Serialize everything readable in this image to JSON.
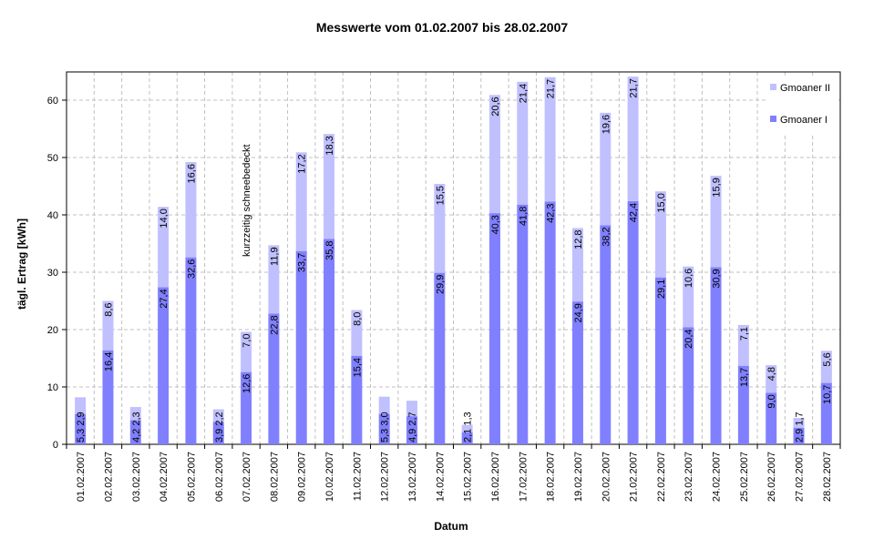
{
  "chart_data": {
    "type": "bar",
    "stacked": true,
    "title": "Messwerte vom 01.02.2007 bis 28.02.2007",
    "xlabel": "Datum",
    "ylabel": "tägl. Ertrag [kWh]",
    "ylim": [
      0,
      65
    ],
    "yticks": [
      0,
      10,
      20,
      30,
      40,
      50,
      60
    ],
    "grid": true,
    "legend_position": "top-right",
    "categories": [
      "01.02.2007",
      "02.02.2007",
      "03.02.2007",
      "04.02.2007",
      "05.02.2007",
      "06.02.2007",
      "07.02.2007",
      "08.02.2007",
      "09.02.2007",
      "10.02.2007",
      "11.02.2007",
      "12.02.2007",
      "13.02.2007",
      "14.02.2007",
      "15.02.2007",
      "16.02.2007",
      "17.02.2007",
      "18.02.2007",
      "19.02.2007",
      "20.02.2007",
      "21.02.2007",
      "22.02.2007",
      "23.02.2007",
      "24.02.2007",
      "25.02.2007",
      "26.02.2007",
      "27.02.2007",
      "28.02.2007"
    ],
    "series": [
      {
        "name": "Gmoaner I",
        "color": "#8080ff",
        "values": [
          5.3,
          16.4,
          4.2,
          27.4,
          32.6,
          3.9,
          12.6,
          22.8,
          33.7,
          35.8,
          15.4,
          5.3,
          4.9,
          29.9,
          2.1,
          40.3,
          41.8,
          42.3,
          24.9,
          38.2,
          42.4,
          29.1,
          20.4,
          30.9,
          13.7,
          9.0,
          2.9,
          10.7
        ],
        "labels": [
          "5,3",
          "16,4",
          "4,2",
          "27,4",
          "32,6",
          "3,9",
          "12,6",
          "22,8",
          "33,7",
          "35,8",
          "15,4",
          "5,3",
          "4,9",
          "29,9",
          "2,1",
          "40,3",
          "41,8",
          "42,3",
          "24,9",
          "38,2",
          "42,4",
          "29,1",
          "20,4",
          "30,9",
          "13,7",
          "9,0",
          "2,9",
          "10,7"
        ]
      },
      {
        "name": "Gmoaner II",
        "color": "#c0c0ff",
        "values": [
          2.9,
          8.6,
          2.3,
          14.0,
          16.6,
          2.2,
          7.0,
          11.9,
          17.2,
          18.3,
          8.0,
          3.0,
          2.7,
          15.5,
          1.3,
          20.6,
          21.4,
          21.7,
          12.8,
          19.6,
          21.7,
          15.0,
          10.6,
          15.9,
          7.1,
          4.8,
          1.7,
          5.6
        ],
        "labels": [
          "2,9",
          "8,6",
          "2,3",
          "14,0",
          "16,6",
          "2,2",
          "7,0",
          "11,9",
          "17,2",
          "18,3",
          "8,0",
          "3,0",
          "2,7",
          "15,5",
          "1,3",
          "20,6",
          "21,4",
          "21,7",
          "12,8",
          "19,6",
          "21,7",
          "15,0",
          "10,6",
          "15,9",
          "7,1",
          "4,8",
          "1,7",
          "5,6"
        ]
      }
    ],
    "annotations": [
      {
        "text": "kurzzeitig schneebedeckt",
        "category": "07.02.2007",
        "orientation": "vertical"
      }
    ]
  },
  "legend": {
    "items": [
      {
        "label": "Gmoaner II",
        "color": "#c0c0ff"
      },
      {
        "label": "Gmoaner I",
        "color": "#8080ff"
      }
    ]
  }
}
